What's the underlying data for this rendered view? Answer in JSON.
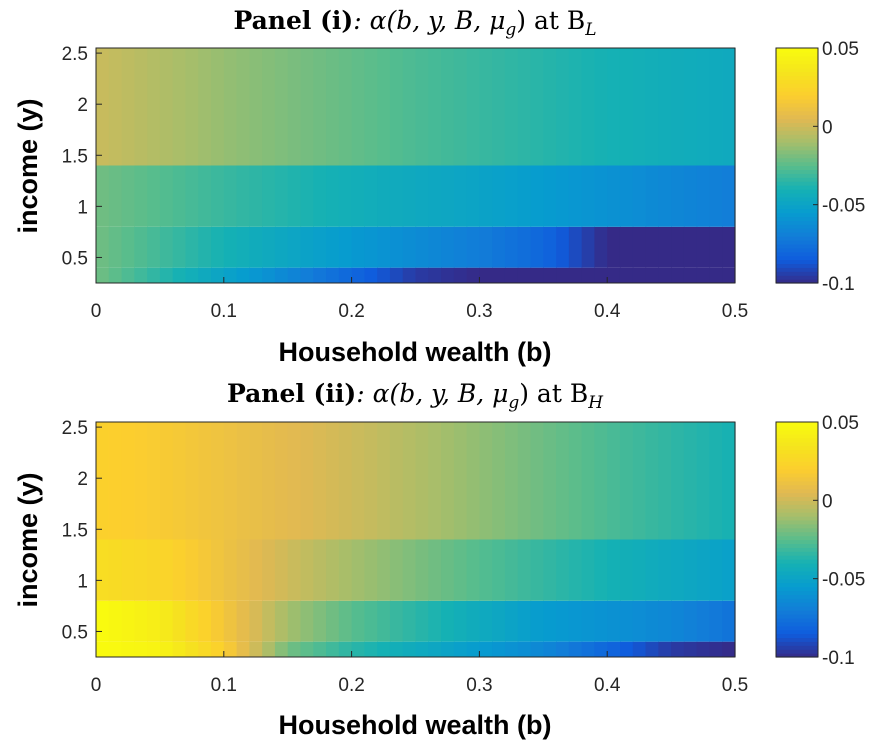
{
  "chart_data": [
    {
      "type": "heatmap",
      "title": {
        "prefix": "Panel (i)",
        "body": ": α(b, y, B, μ",
        "sub1": "g",
        "mid": ") at B",
        "sub2": "L"
      },
      "xlabel": "Household wealth (b)",
      "ylabel": "income (y)",
      "xlim": [
        0,
        0.5
      ],
      "ylim": [
        0.25,
        2.55
      ],
      "xticks": [
        0,
        0.1,
        0.2,
        0.3,
        0.4,
        0.5
      ],
      "xtick_labels": [
        "0",
        "0.1",
        "0.2",
        "0.3",
        "0.4",
        "0.5"
      ],
      "yticks": [
        0.5,
        1,
        1.5,
        2,
        2.5
      ],
      "ytick_labels": [
        "0.5",
        "1",
        "1.5",
        "2",
        "2.5"
      ],
      "b_grid": [
        0.0,
        0.05,
        0.1,
        0.15,
        0.2,
        0.25,
        0.3,
        0.35,
        0.4,
        0.45,
        0.5
      ],
      "income_bands": [
        {
          "y0": 0.25,
          "y1": 0.4,
          "alpha": [
            -0.02,
            -0.035,
            -0.05,
            -0.065,
            -0.08,
            -0.095,
            -0.1,
            -0.1,
            -0.1,
            -0.1,
            -0.1
          ]
        },
        {
          "y0": 0.4,
          "y1": 0.8,
          "alpha": [
            -0.02,
            -0.03,
            -0.04,
            -0.048,
            -0.056,
            -0.063,
            -0.07,
            -0.08,
            -0.1,
            -0.1,
            -0.1
          ]
        },
        {
          "y0": 0.8,
          "y1": 1.4,
          "alpha": [
            -0.02,
            -0.026,
            -0.032,
            -0.037,
            -0.042,
            -0.046,
            -0.05,
            -0.055,
            -0.06,
            -0.065,
            -0.07
          ]
        },
        {
          "y0": 1.4,
          "y1": 2.55,
          "alpha": [
            -0.001,
            -0.007,
            -0.013,
            -0.018,
            -0.023,
            -0.028,
            -0.032,
            -0.036,
            -0.04,
            -0.043,
            -0.046
          ]
        }
      ],
      "colorbar": {
        "min": -0.1,
        "max": 0.05,
        "ticks": [
          -0.1,
          -0.05,
          0,
          0.05
        ],
        "tick_labels": [
          "-0.1",
          "-0.05",
          "0",
          "0.05"
        ]
      },
      "colormap": "parula"
    },
    {
      "type": "heatmap",
      "title": {
        "prefix": "Panel (ii)",
        "body": ": α(b, y, B, μ",
        "sub1": "g",
        "mid": ") at B",
        "sub2": "H"
      },
      "xlabel": "Household wealth (b)",
      "ylabel": "income (y)",
      "xlim": [
        0,
        0.5
      ],
      "ylim": [
        0.25,
        2.55
      ],
      "xticks": [
        0,
        0.1,
        0.2,
        0.3,
        0.4,
        0.5
      ],
      "xtick_labels": [
        "0",
        "0.1",
        "0.2",
        "0.3",
        "0.4",
        "0.5"
      ],
      "yticks": [
        0.5,
        1,
        1.5,
        2,
        2.5
      ],
      "ytick_labels": [
        "0.5",
        "1",
        "1.5",
        "2",
        "2.5"
      ],
      "b_grid": [
        0.0,
        0.05,
        0.1,
        0.15,
        0.2,
        0.25,
        0.3,
        0.35,
        0.4,
        0.45,
        0.5
      ],
      "income_bands": [
        {
          "y0": 0.25,
          "y1": 0.4,
          "alpha": [
            0.05,
            0.045,
            0.02,
            -0.02,
            -0.035,
            -0.045,
            -0.055,
            -0.065,
            -0.08,
            -0.095,
            -0.1
          ]
        },
        {
          "y0": 0.4,
          "y1": 0.8,
          "alpha": [
            0.05,
            0.04,
            0.015,
            -0.01,
            -0.025,
            -0.035,
            -0.045,
            -0.055,
            -0.06,
            -0.065,
            -0.075
          ]
        },
        {
          "y0": 0.8,
          "y1": 1.4,
          "alpha": [
            0.03,
            0.025,
            0.012,
            0.0,
            -0.01,
            -0.018,
            -0.026,
            -0.033,
            -0.04,
            -0.046,
            -0.052
          ]
        },
        {
          "y0": 1.4,
          "y1": 2.55,
          "alpha": [
            0.022,
            0.018,
            0.012,
            0.006,
            0.0,
            -0.007,
            -0.014,
            -0.021,
            -0.028,
            -0.034,
            -0.04
          ]
        }
      ],
      "colorbar": {
        "min": -0.1,
        "max": 0.05,
        "ticks": [
          -0.1,
          -0.05,
          0,
          0.05
        ],
        "tick_labels": [
          "-0.1",
          "-0.05",
          "0",
          "0.05"
        ]
      },
      "colormap": "parula"
    }
  ]
}
